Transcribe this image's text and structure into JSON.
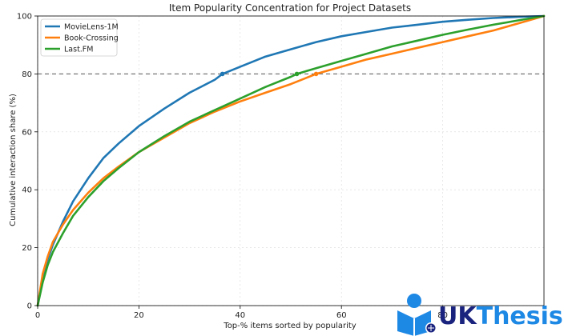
{
  "chart_data": {
    "type": "line",
    "title": "Item Popularity Concentration for Project Datasets",
    "xlabel": "Top-% items sorted by popularity",
    "ylabel": "Cumulative interaction share (%)",
    "xlim": [
      0,
      100
    ],
    "ylim": [
      0,
      100
    ],
    "xticks": [
      "0",
      "20",
      "40",
      "60",
      "80"
    ],
    "yticks": [
      "0",
      "20",
      "40",
      "60",
      "80",
      "100"
    ],
    "grid": true,
    "legend_position": "top-left",
    "reference_line": {
      "y": 80,
      "style": "dashed",
      "color": "#555555"
    },
    "series": [
      {
        "name": "MovieLens-1M",
        "color": "#1f77b4",
        "x": [
          0,
          1,
          2,
          3,
          5,
          7,
          10,
          13,
          16,
          20,
          25,
          30,
          35,
          36.5,
          40,
          45,
          50,
          55,
          60,
          65,
          70,
          75,
          80,
          85,
          90,
          95,
          100
        ],
        "y": [
          0,
          10,
          16,
          21,
          29,
          36,
          44,
          51,
          56,
          62,
          68,
          73.5,
          78,
          80,
          82.5,
          86,
          88.5,
          91,
          93,
          94.5,
          96,
          97,
          98,
          98.7,
          99.3,
          99.7,
          100
        ],
        "marker_at_80": 36.5
      },
      {
        "name": "Book-Crossing",
        "color": "#ff7f0e",
        "x": [
          0,
          1,
          2,
          3,
          5,
          7,
          10,
          13,
          16,
          20,
          25,
          30,
          35,
          40,
          45,
          50,
          55,
          60,
          65,
          70,
          75,
          80,
          85,
          90,
          95,
          100
        ],
        "y": [
          0,
          11,
          17,
          22,
          28,
          33,
          39,
          44,
          48,
          53,
          58,
          63,
          67,
          70.5,
          73.5,
          76.5,
          80,
          82.5,
          85,
          87,
          89,
          91,
          93,
          95,
          97.5,
          100
        ],
        "marker_at_80": 55
      },
      {
        "name": "Last.FM",
        "color": "#2ca02c",
        "x": [
          0,
          1,
          2,
          3,
          5,
          7,
          10,
          13,
          16,
          20,
          25,
          30,
          35,
          40,
          45,
          50,
          51.2,
          55,
          60,
          65,
          70,
          75,
          80,
          85,
          90,
          95,
          100
        ],
        "y": [
          0,
          8,
          14,
          18.5,
          25,
          31,
          37.5,
          43,
          47.5,
          53,
          58.5,
          63.5,
          67.5,
          71.5,
          75.5,
          79,
          80,
          82,
          84.5,
          87,
          89.5,
          91.5,
          93.5,
          95.3,
          97,
          98.5,
          100
        ],
        "marker_at_80": 51.2
      }
    ]
  },
  "watermark": {
    "text": "UKThesis",
    "colors": {
      "blue": "#1e88e5",
      "dark": "#1a237e"
    }
  }
}
